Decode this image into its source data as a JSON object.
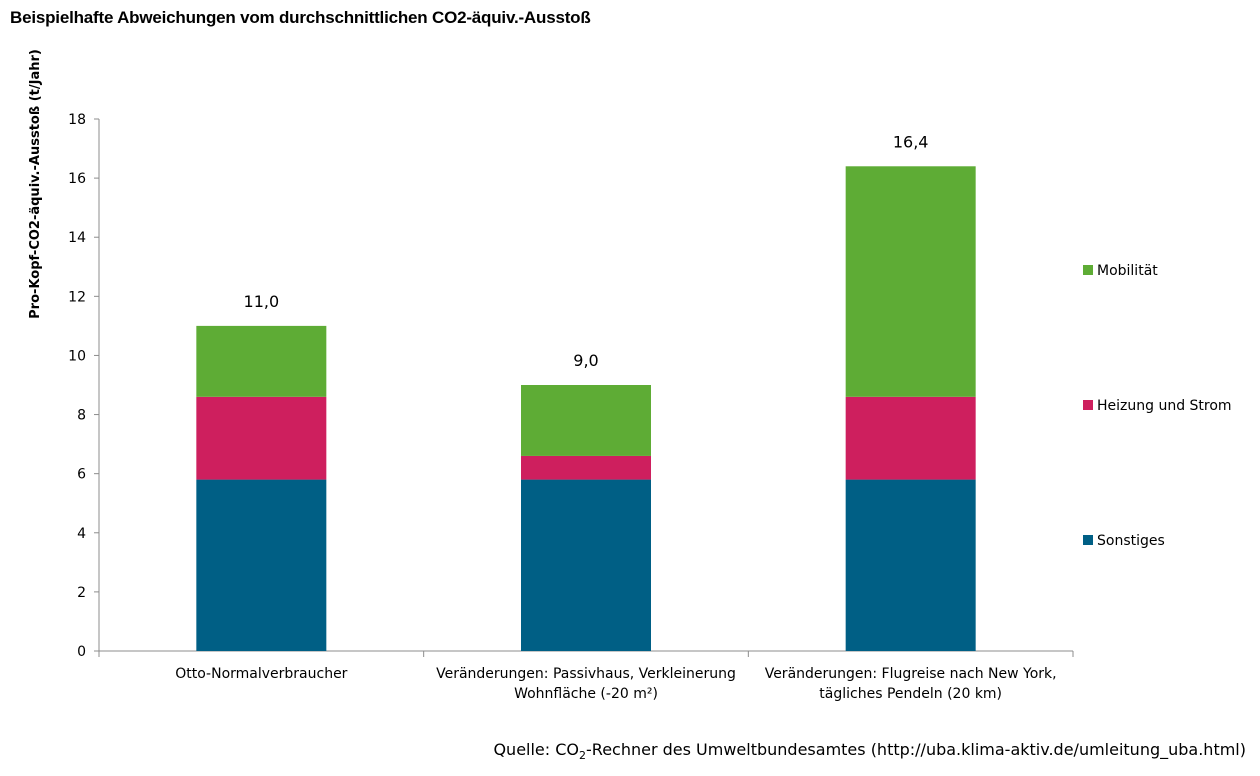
{
  "chart_data": {
    "type": "bar",
    "stacked": true,
    "title": "Beispielhafte Abweichungen vom durchschnittlichen CO2-äquiv.-Ausstoß",
    "ylabel": "Pro-Kopf-CO2-äquiv.-Ausstoß (t/Jahr)",
    "xlabel": "",
    "ylim": [
      0,
      18
    ],
    "yticks": [
      0,
      2,
      4,
      6,
      8,
      10,
      12,
      14,
      16,
      18
    ],
    "categories": [
      [
        "Otto-Normalverbraucher"
      ],
      [
        "Veränderungen: Passivhaus, Verkleinerung",
        "Wohnfläche (-20 m²)"
      ],
      [
        "Veränderungen: Flugreise nach New York,",
        "tägliches Pendeln (20 km)"
      ]
    ],
    "series": [
      {
        "name": "Sonstiges",
        "color": "#005f85",
        "values": [
          5.8,
          5.8,
          5.8
        ]
      },
      {
        "name": "Heizung und Strom",
        "color": "#ce1f5e",
        "values": [
          2.8,
          0.8,
          2.8
        ]
      },
      {
        "name": "Mobilität",
        "color": "#5eac35",
        "values": [
          2.4,
          2.4,
          7.8
        ]
      }
    ],
    "totals": [
      "11,0",
      "9,0",
      "16,4"
    ],
    "legend_position": "right",
    "grid": false
  },
  "source": {
    "prefix": "Quelle: CO",
    "subscript": "2",
    "suffix": "-Rechner des Umweltbundesamtes (http://uba.klima-aktiv.de/umleitung_uba.html)"
  }
}
